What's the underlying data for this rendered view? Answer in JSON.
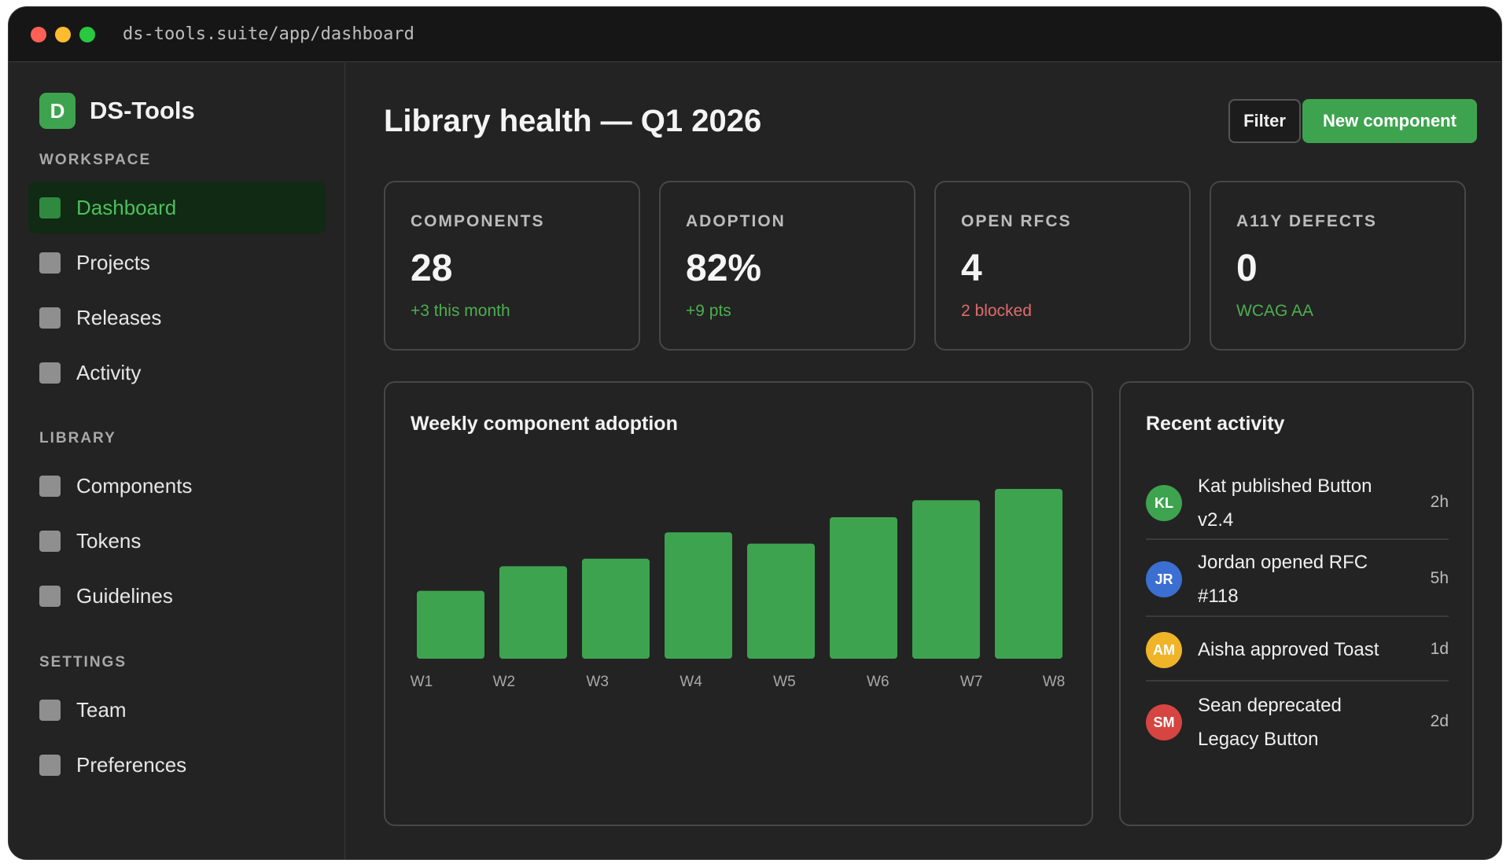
{
  "browser": {
    "url": "ds-tools.suite/app/dashboard"
  },
  "brand": {
    "logo_letter": "D",
    "name": "DS-Tools",
    "color": "#3ea34f"
  },
  "sidebar": {
    "sections": [
      {
        "label": "WORKSPACE",
        "items": [
          {
            "label": "Dashboard",
            "active": true
          },
          {
            "label": "Projects"
          },
          {
            "label": "Releases"
          },
          {
            "label": "Activity"
          }
        ]
      },
      {
        "label": "LIBRARY",
        "items": [
          {
            "label": "Components"
          },
          {
            "label": "Tokens"
          },
          {
            "label": "Guidelines"
          }
        ]
      },
      {
        "label": "SETTINGS",
        "items": [
          {
            "label": "Team"
          },
          {
            "label": "Preferences"
          }
        ]
      }
    ]
  },
  "header": {
    "title": "Library health — Q1 2026",
    "filter_label": "Filter",
    "new_label": "New component"
  },
  "stats": [
    {
      "label": "COMPONENTS",
      "value": "28",
      "sub": "+3 this month",
      "sub_color": "#4caf50"
    },
    {
      "label": "ADOPTION",
      "value": "82%",
      "sub": "+9 pts",
      "sub_color": "#4caf50"
    },
    {
      "label": "OPEN RFCS",
      "value": "4",
      "sub": "2 blocked",
      "sub_color": "#e06c6c"
    },
    {
      "label": "A11Y DEFECTS",
      "value": "0",
      "sub": "WCAG AA",
      "sub_color": "#4caf50"
    }
  ],
  "chart": {
    "title": "Weekly component adoption"
  },
  "chart_data": {
    "type": "bar",
    "title": "Weekly component adoption",
    "categories": [
      "W1",
      "W2",
      "W3",
      "W4",
      "W5",
      "W6",
      "W7",
      "W8"
    ],
    "values": [
      36,
      49,
      53,
      67,
      61,
      75,
      84,
      90
    ],
    "ylim": [
      0,
      100
    ],
    "color": "#3ea34f",
    "grid": false
  },
  "activity": {
    "title": "Recent activity",
    "items": [
      {
        "initials": "KL",
        "color": "#3ea34f",
        "line1": "Kat published Button",
        "line2": "v2.4",
        "time": "2h"
      },
      {
        "initials": "JR",
        "color": "#3b6fd1",
        "line1": "Jordan opened RFC",
        "line2": "#118",
        "time": "5h"
      },
      {
        "initials": "AM",
        "color": "#f0b429",
        "line1": "Aisha approved Toast",
        "line2": "",
        "time": "1d"
      },
      {
        "initials": "SM",
        "color": "#d64541",
        "line1": "Sean deprecated",
        "line2": "Legacy Button",
        "time": "2d"
      }
    ]
  }
}
